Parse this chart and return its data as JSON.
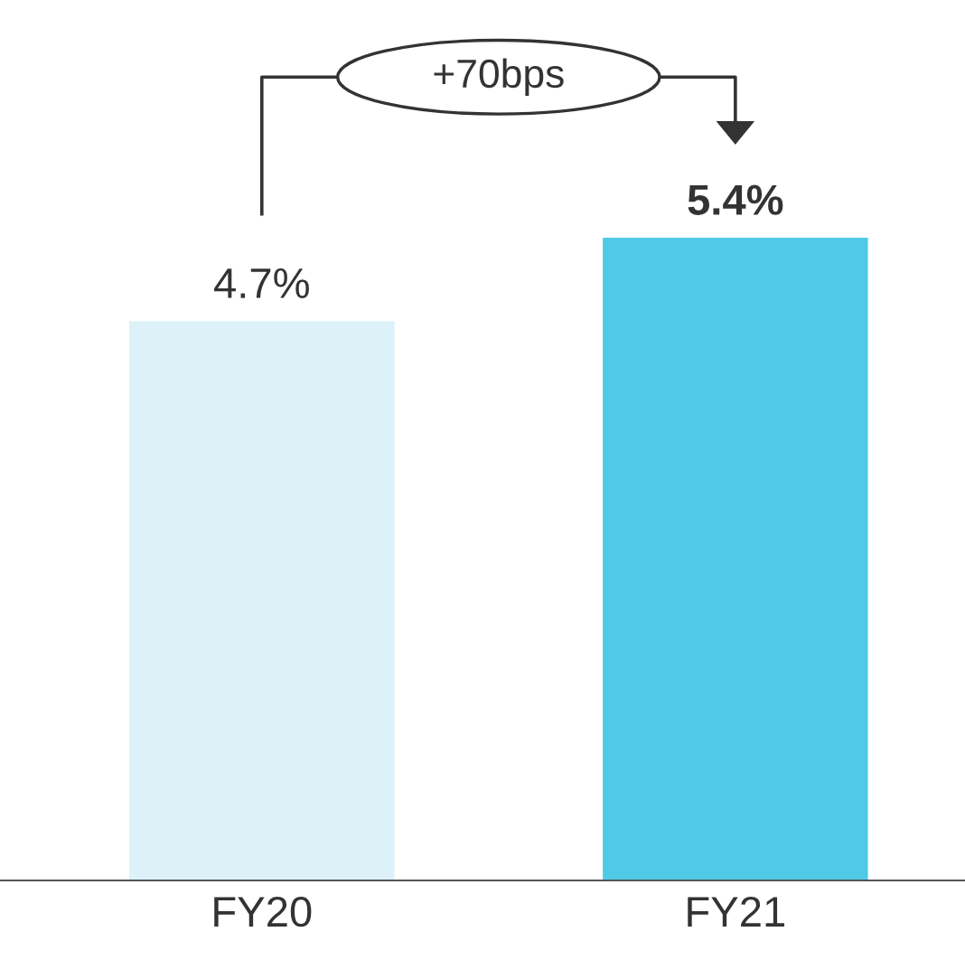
{
  "chart_data": {
    "type": "bar",
    "categories": [
      "FY20",
      "FY21"
    ],
    "values": [
      4.7,
      5.4
    ],
    "colors": [
      "#dcf2f8",
      "#4fc9e6"
    ],
    "value_labels": [
      "4.7%",
      "5.4%"
    ],
    "annotations": [
      "+70bps"
    ]
  }
}
